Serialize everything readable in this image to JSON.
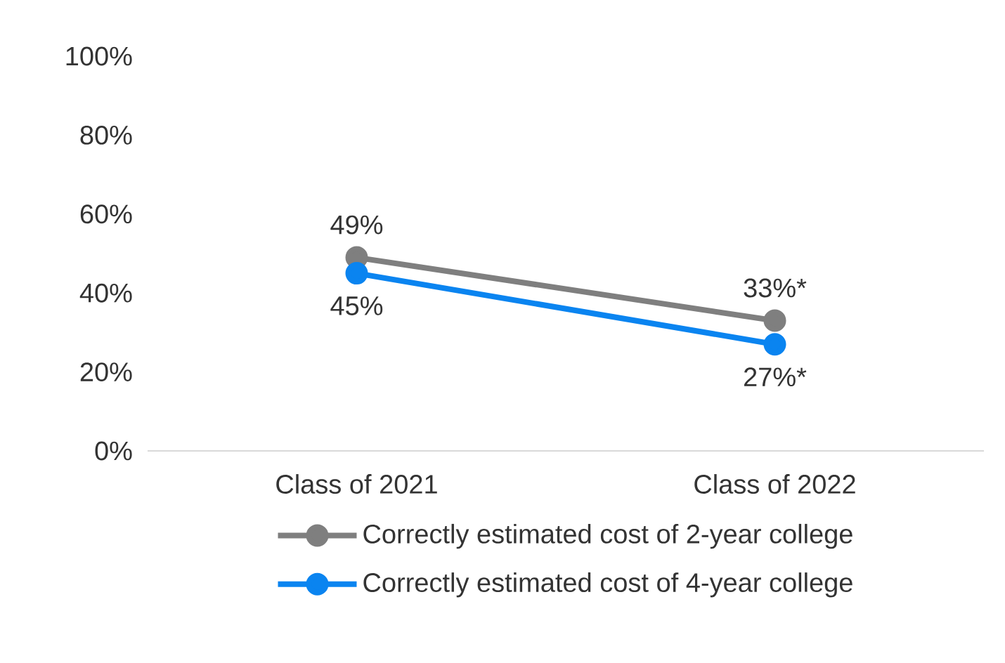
{
  "chart_data": {
    "type": "line",
    "categories": [
      "Class of 2021",
      "Class of 2022"
    ],
    "series": [
      {
        "name": "Correctly estimated cost of 2-year college",
        "color": "#7f7f7f",
        "values": [
          49,
          33
        ],
        "value_labels": [
          "49%",
          "33%*"
        ]
      },
      {
        "name": "Correctly estimated cost of 4-year college",
        "color": "#0a84f0",
        "values": [
          45,
          27
        ],
        "value_labels": [
          "45%",
          "27%*"
        ]
      }
    ],
    "ylim": [
      0,
      100
    ],
    "yticks": [
      {
        "value": 0,
        "label": "0%"
      },
      {
        "value": 20,
        "label": "20%"
      },
      {
        "value": 40,
        "label": "40%"
      },
      {
        "value": 60,
        "label": "60%"
      },
      {
        "value": 80,
        "label": "80%"
      },
      {
        "value": 100,
        "label": "100%"
      }
    ],
    "grid": false,
    "legend": "bottom",
    "marker": "circle",
    "line_style": "solid"
  }
}
